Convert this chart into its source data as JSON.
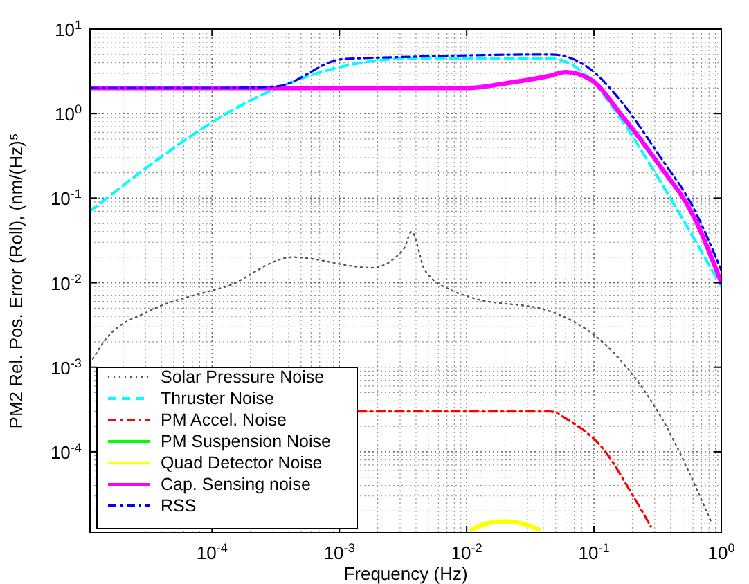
{
  "chart_data": {
    "type": "line",
    "xlabel": "Frequency (Hz)",
    "ylabel": "PM2 Rel. Pos. Error (Roll), (nm/(Hz)⁵",
    "log": "xy",
    "grid": true,
    "legend": "bottom left",
    "xlim": [
      1.1e-05,
      1
    ],
    "ylim": [
      1.1e-05,
      10
    ],
    "xticks": [
      {
        "value": 0.0001,
        "label": "10$^{-4}$"
      },
      {
        "value": 0.001,
        "label": "10$^{-3}$"
      },
      {
        "value": 0.01,
        "label": "10$^{-2}$"
      },
      {
        "value": 0.1,
        "label": "10$^{-1}$"
      },
      {
        "value": 1,
        "label": "10$^{0}$"
      }
    ],
    "yticks": [
      {
        "value": 0.0001,
        "label": "10$^{-4}$"
      },
      {
        "value": 0.001,
        "label": "10$^{-3}$"
      },
      {
        "value": 0.01,
        "label": "10$^{-2}$"
      },
      {
        "value": 0.1,
        "label": "10$^{-1}$"
      },
      {
        "value": 1,
        "label": "10$^{0}$"
      },
      {
        "value": 10,
        "label": "10$^{1}$"
      }
    ],
    "series": [
      {
        "name": "Solar Pressure Noise",
        "color": "#555555",
        "line_style": "dotted",
        "x": [
          1.1e-05,
          1.45e-05,
          3.2e-05,
          9.1e-05,
          0.000126,
          0.00043,
          0.0018,
          0.0032,
          0.0037,
          0.0047,
          0.0078,
          0.0112,
          0.045,
          0.148,
          0.33,
          0.83
        ],
        "values": [
          0.0011,
          0.0021,
          0.0046,
          0.0078,
          0.0089,
          0.02,
          0.015,
          0.025,
          0.04,
          0.014,
          0.008,
          0.0066,
          0.0046,
          0.0014,
          0.00027,
          1.5e-05
        ]
      },
      {
        "name": "Thruster Noise",
        "color": "#00ffff",
        "line_style": "dashed",
        "x": [
          1.1e-05,
          0.0003,
          0.00105,
          0.0037,
          0.045,
          0.058,
          0.095,
          0.16,
          0.33,
          1
        ],
        "values": [
          0.07,
          1.9,
          3.6,
          4.5,
          4.5,
          4.2,
          2.5,
          0.9,
          0.16,
          0.009
        ]
      },
      {
        "name": "PM Accel. Noise",
        "color": "#ff0000",
        "line_style": "dashdot",
        "x": [
          0.0014,
          0.01,
          0.045,
          0.065,
          0.12,
          0.198,
          0.28
        ],
        "values": [
          0.0003,
          0.0003,
          0.0003,
          0.00023,
          0.000105,
          3.2e-05,
          1.3e-05
        ]
      },
      {
        "name": "PM Suspension Noise",
        "color": "#00ff00",
        "line_style": "solid"
      },
      {
        "name": "Quad Detector Noise",
        "color": "#ffff00",
        "line_style": "solid",
        "x": [
          0.011,
          0.014,
          0.02,
          0.028,
          0.037
        ],
        "values": [
          1.2e-05,
          1.4e-05,
          1.5e-05,
          1.4e-05,
          1.2e-05
        ]
      },
      {
        "name": "Cap. Sensing noise",
        "color": "#ff00ff",
        "line_style": "solid",
        "x": [
          1.1e-05,
          0.01,
          0.021,
          0.045,
          0.06,
          0.095,
          0.17,
          0.33,
          0.6,
          1
        ],
        "values": [
          2,
          2,
          2.3,
          2.8,
          3.1,
          2.5,
          0.9,
          0.24,
          0.063,
          0.01
        ]
      },
      {
        "name": "RSS",
        "color": "#0000ff",
        "line_style": "dashdot",
        "x": [
          1.1e-05,
          0.0001,
          0.00032,
          0.00105,
          0.0037,
          0.045,
          0.058,
          0.095,
          0.16,
          0.33,
          0.6,
          1
        ],
        "values": [
          2,
          2,
          2.1,
          4.4,
          4.7,
          5,
          4.8,
          3.3,
          1.45,
          0.31,
          0.078,
          0.014
        ]
      }
    ]
  }
}
